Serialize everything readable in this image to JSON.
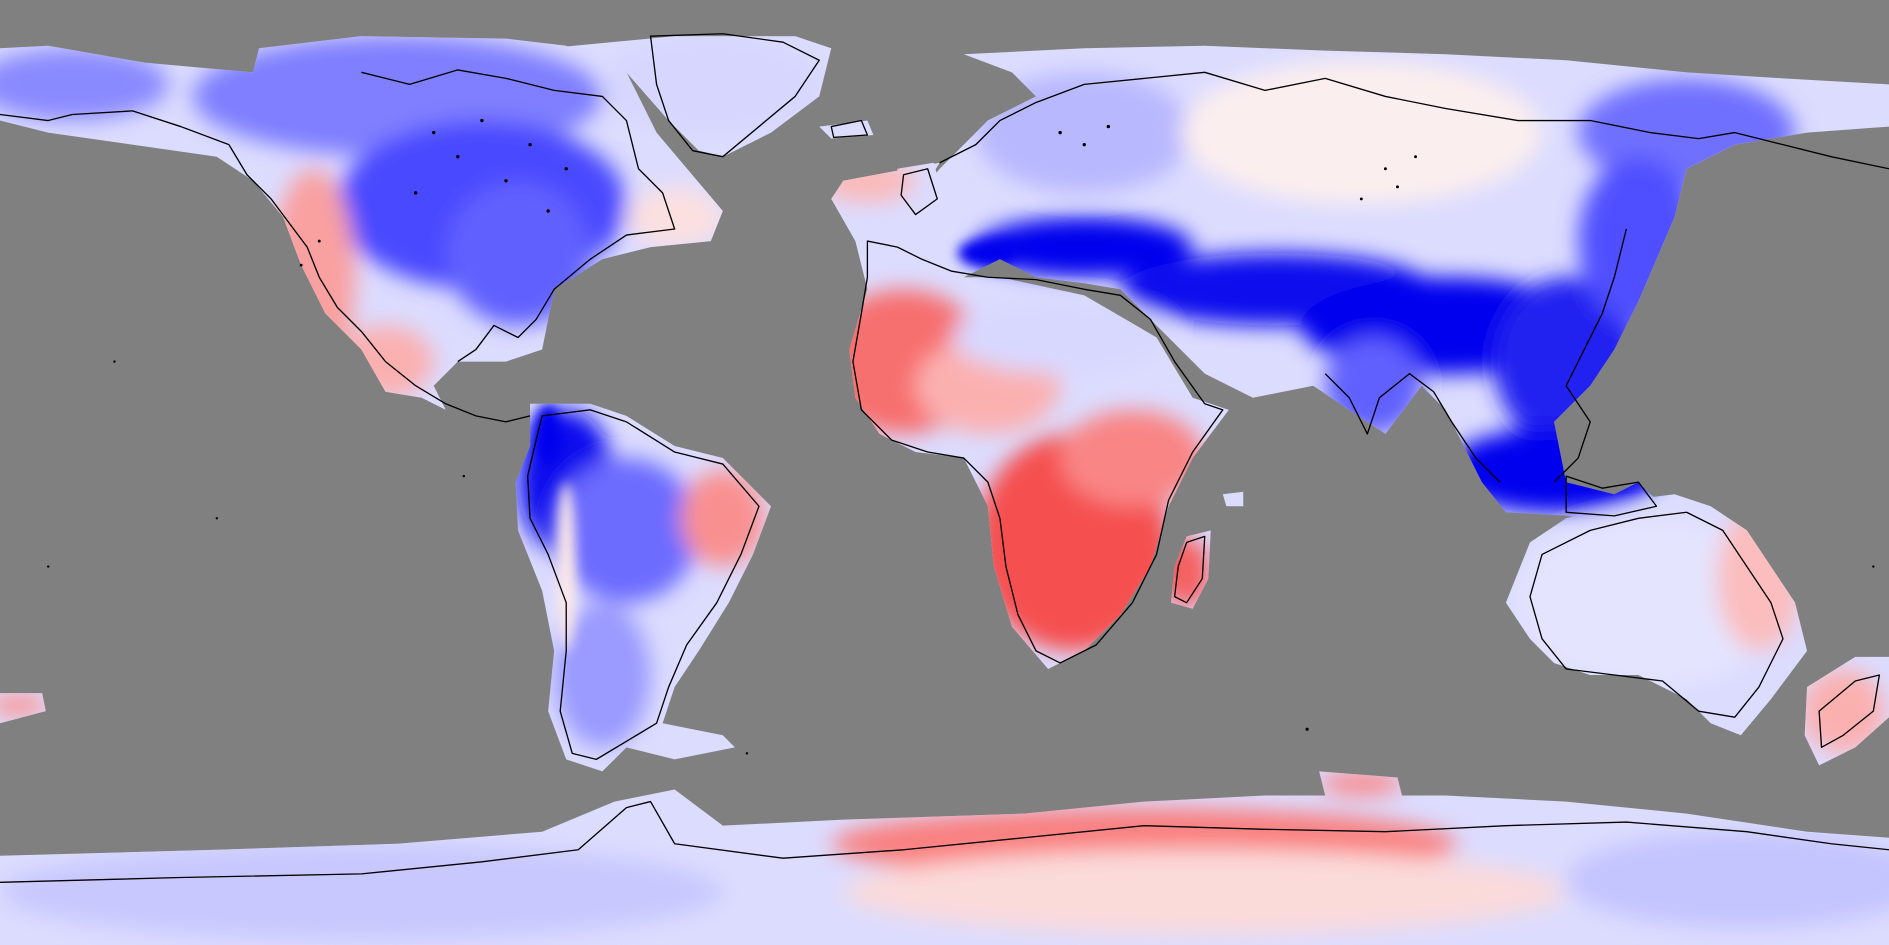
{
  "map": {
    "type": "global-field-map",
    "projection": "equirectangular",
    "extent": {
      "lon": [
        -180,
        180
      ],
      "lat": [
        -90,
        90
      ]
    },
    "colors": {
      "background_ocean": "#808080",
      "strong_positive": "#f44a4a",
      "positive": "#f98080",
      "weak_positive": "#fbc9c9",
      "neutral": "#f7f7ff",
      "weak_negative": "#c8c8ff",
      "negative": "#8080ff",
      "strong_negative": "#0000ee",
      "coastline": "#000000"
    },
    "regions": [
      {
        "name": "north-america-interior",
        "value": "negative"
      },
      {
        "name": "north-america-west-coast",
        "value": "positive"
      },
      {
        "name": "greenland",
        "value": "weak-negative"
      },
      {
        "name": "europe",
        "value": "weak-negative"
      },
      {
        "name": "north-africa-sahel",
        "value": "positive"
      },
      {
        "name": "southern-africa",
        "value": "strong-positive"
      },
      {
        "name": "mediterranean-to-east-asia-band",
        "value": "strong-negative"
      },
      {
        "name": "siberia",
        "value": "neutral"
      },
      {
        "name": "maritime-continent",
        "value": "strong-negative"
      },
      {
        "name": "andes-amazon",
        "value": "strong-negative"
      },
      {
        "name": "brazil-east",
        "value": "positive"
      },
      {
        "name": "australia",
        "value": "weak-negative"
      },
      {
        "name": "new-zealand",
        "value": "weak-positive"
      },
      {
        "name": "antarctica-east-coast",
        "value": "positive"
      },
      {
        "name": "antarctica-interior",
        "value": "weak-negative"
      }
    ]
  }
}
